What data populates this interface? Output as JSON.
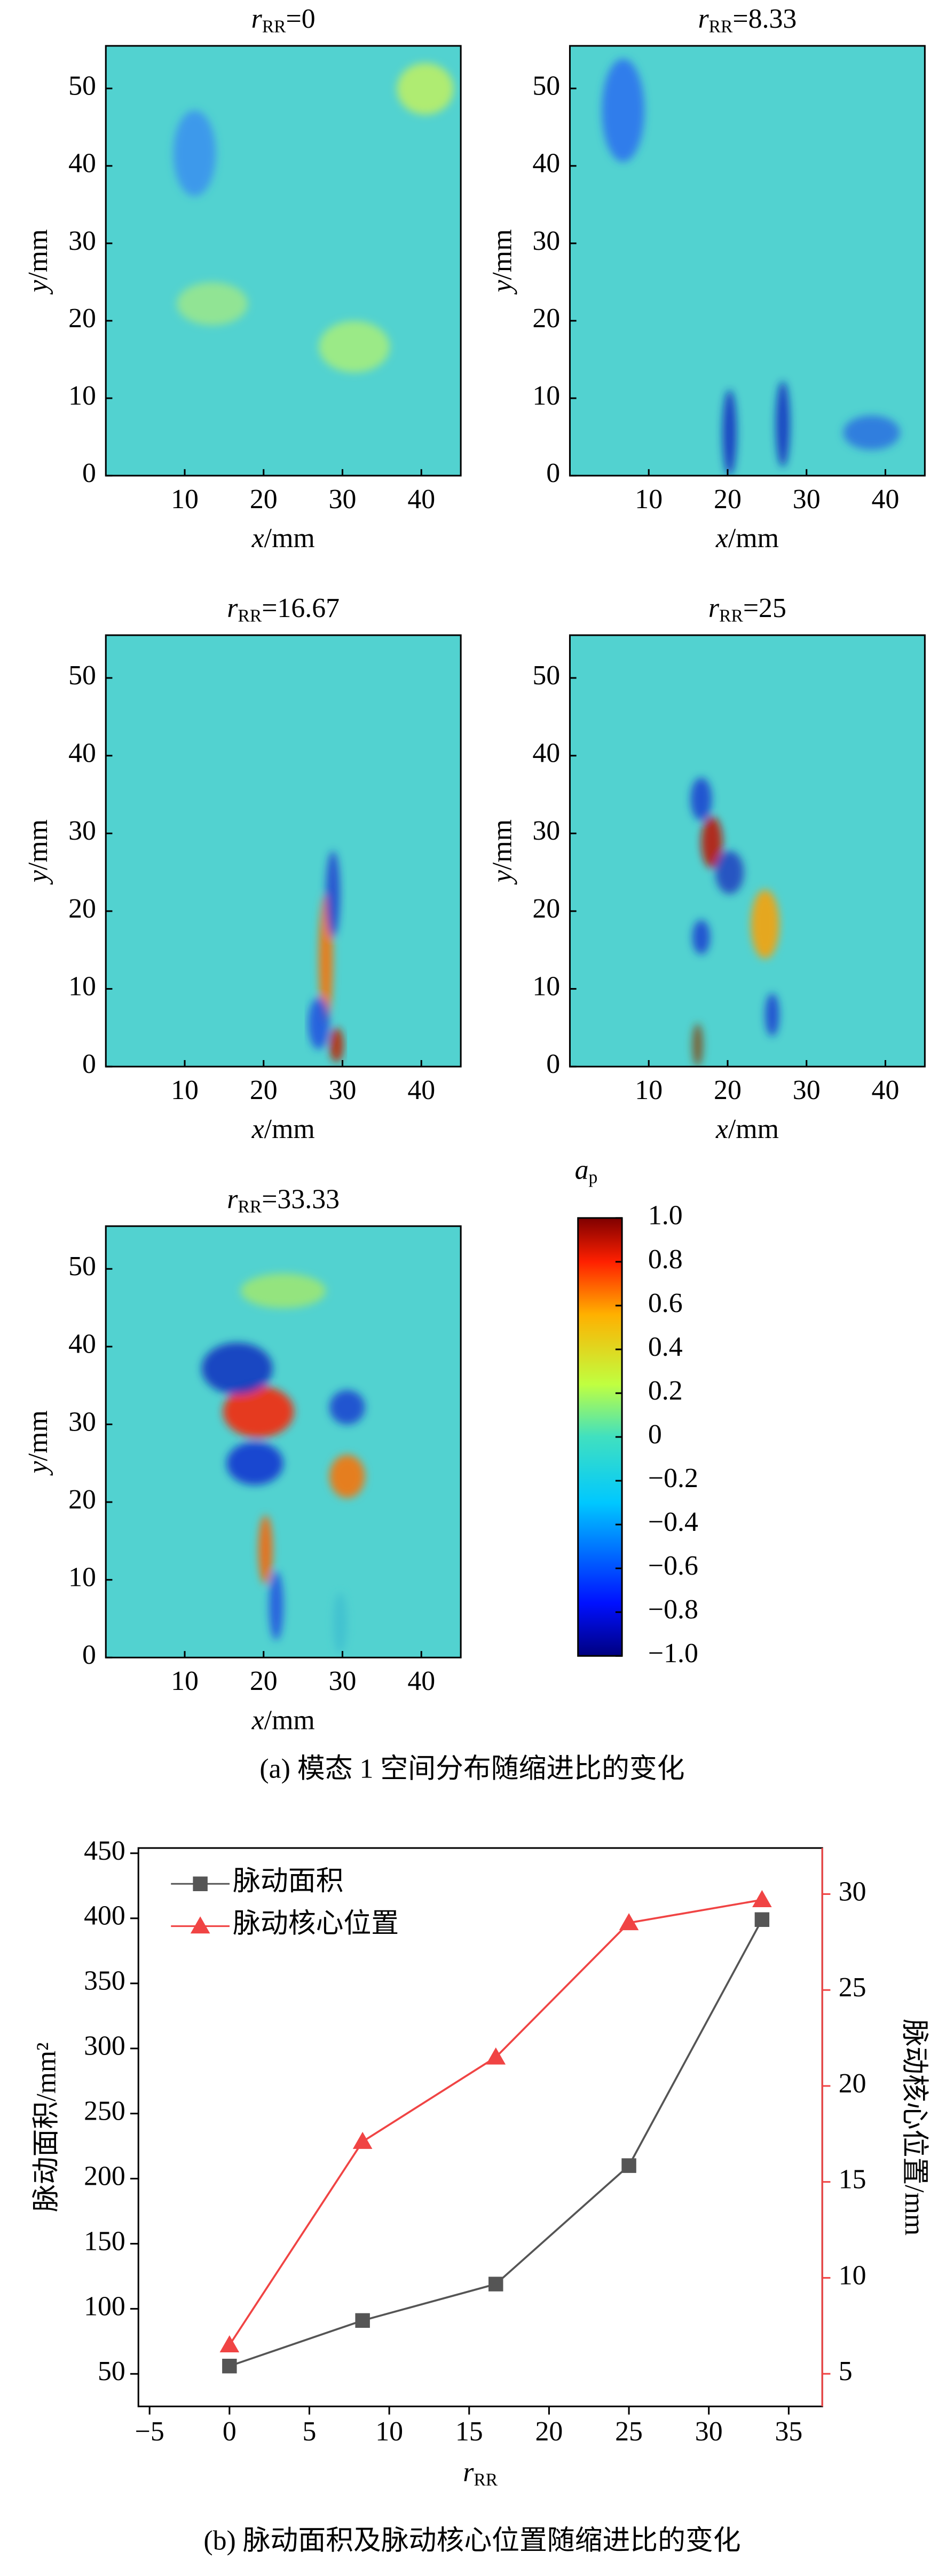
{
  "chart_data": [
    {
      "type": "heatmap",
      "title": [
        "r",
        "RR",
        "=0"
      ],
      "xlabel": [
        "x",
        "/mm"
      ],
      "ylabel": [
        "y",
        "/mm"
      ],
      "xlim": [
        0,
        45
      ],
      "ylim": [
        0,
        55.5
      ],
      "xticks": [
        10,
        20,
        30,
        40
      ],
      "yticks": [
        0,
        10,
        20,
        30,
        40,
        50
      ]
    },
    {
      "type": "heatmap",
      "title": [
        "r",
        "RR",
        "=8.33"
      ],
      "xlabel": [
        "x",
        "/mm"
      ],
      "ylabel": [
        "y",
        "/mm"
      ],
      "xlim": [
        0,
        45
      ],
      "ylim": [
        0,
        55.5
      ],
      "xticks": [
        10,
        20,
        30,
        40
      ],
      "yticks": [
        0,
        10,
        20,
        30,
        40,
        50
      ]
    },
    {
      "type": "heatmap",
      "title": [
        "r",
        "RR",
        "=16.67"
      ],
      "xlabel": [
        "x",
        "/mm"
      ],
      "ylabel": [
        "y",
        "/mm"
      ],
      "xlim": [
        0,
        45
      ],
      "ylim": [
        0,
        55.5
      ],
      "xticks": [
        10,
        20,
        30,
        40
      ],
      "yticks": [
        0,
        10,
        20,
        30,
        40,
        50
      ]
    },
    {
      "type": "heatmap",
      "title": [
        "r",
        "RR",
        "=25"
      ],
      "xlabel": [
        "x",
        "/mm"
      ],
      "ylabel": [
        "y",
        "/mm"
      ],
      "xlim": [
        0,
        45
      ],
      "ylim": [
        0,
        55.5
      ],
      "xticks": [
        10,
        20,
        30,
        40
      ],
      "yticks": [
        0,
        10,
        20,
        30,
        40,
        50
      ]
    },
    {
      "type": "heatmap",
      "title": [
        "r",
        "RR",
        "=33.33"
      ],
      "xlabel": [
        "x",
        "/mm"
      ],
      "ylabel": [
        "y",
        "/mm"
      ],
      "xlim": [
        0,
        45
      ],
      "ylim": [
        0,
        55.5
      ],
      "xticks": [
        10,
        20,
        30,
        40
      ],
      "yticks": [
        0,
        10,
        20,
        30,
        40,
        50
      ]
    },
    {
      "type": "colorbar",
      "label": [
        "a",
        "p"
      ],
      "ylim": [
        -1,
        1
      ],
      "yticks": [
        {
          "value": 1,
          "label": "1.0"
        },
        {
          "value": 0.8,
          "label": "0.8"
        },
        {
          "value": 0.6,
          "label": "0.6"
        },
        {
          "value": 0.4,
          "label": "0.4"
        },
        {
          "value": 0.2,
          "label": "0.2"
        },
        0,
        {
          "value": -0.2,
          "label": "−0.2"
        },
        {
          "value": -0.4,
          "label": "−0.4"
        },
        {
          "value": -0.6,
          "label": "−0.6"
        },
        {
          "value": -0.8,
          "label": "−0.8"
        },
        {
          "value": -1,
          "label": "−1.0"
        }
      ]
    },
    {
      "type": "line",
      "xlabel": [
        "r",
        "RR"
      ],
      "ylabel": "脉动面积/mm²",
      "y2label": "脉动核心位置/mm",
      "x": [
        0,
        8.33,
        16.67,
        25,
        33.33
      ],
      "series": [
        {
          "name": "脉动面积",
          "color": "#555555",
          "marker": "square",
          "values": [
            56,
            91,
            119,
            210,
            399
          ]
        },
        {
          "name": "脉动核心位置",
          "color": "#f04444",
          "marker": "triangle",
          "axis": "y2",
          "values": [
            6.5,
            17.1,
            21.5,
            28.5,
            29.7
          ]
        }
      ],
      "xlim": [
        -5.7,
        37.1
      ],
      "ylim": [
        25,
        454
      ],
      "y2lim": [
        3.3,
        32.4
      ],
      "xticks": [
        {
          "value": -5,
          "label": "−5"
        },
        0,
        5,
        10,
        15,
        20,
        25,
        30,
        35
      ],
      "yticks": [
        50,
        100,
        150,
        200,
        250,
        300,
        350,
        400,
        450
      ],
      "y2ticks": [
        5,
        10,
        15,
        20,
        25,
        30
      ],
      "legend": "upper-left"
    }
  ],
  "captions": [
    "(a) 模态 1 空间分布随缩进比的变化",
    "(b) 脉动面积及脉动核心位置随缩进比的变化"
  ]
}
